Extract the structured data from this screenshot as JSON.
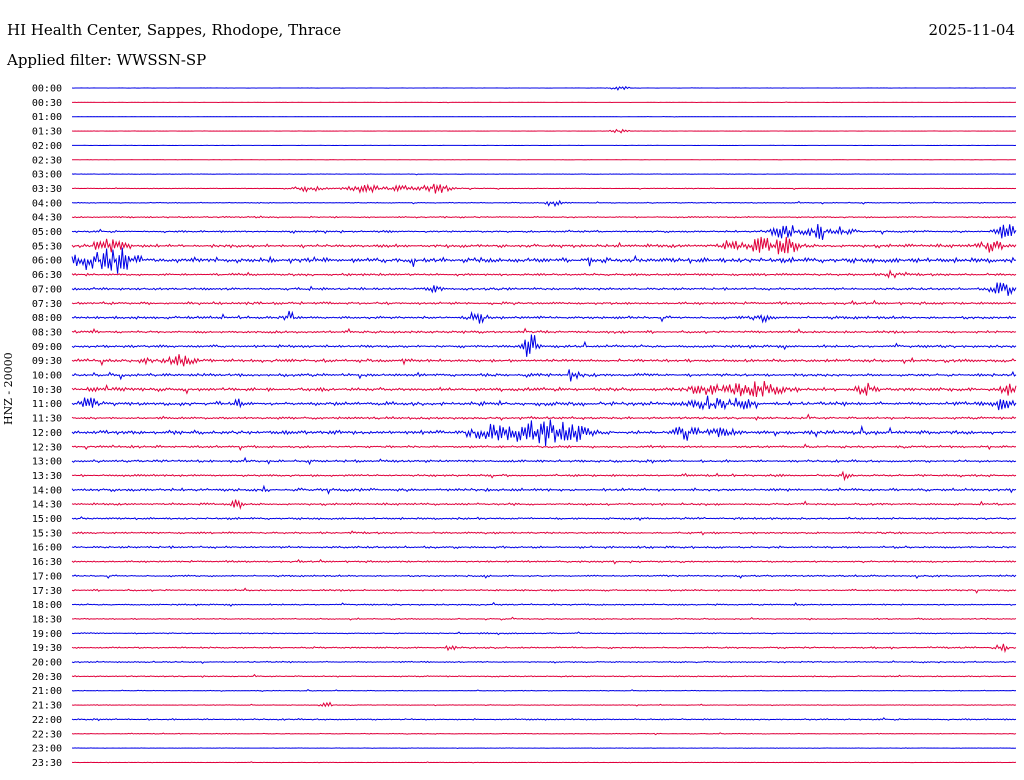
{
  "header": {
    "station": "HI Health Center, Sappes, Rhodope, Thrace",
    "date": "2025-11-04",
    "filter_label": "Applied filter:",
    "filter": "WWSSN-SP"
  },
  "channel_label": "HNZ - 20000",
  "colors": {
    "trace_a": "#0000e6",
    "trace_b": "#e0003c",
    "text": "#000000"
  },
  "chart_data": {
    "type": "helicorder",
    "trace_colors": [
      "#0000e6",
      "#e0003c"
    ],
    "rows": [
      "00:00",
      "00:30",
      "01:00",
      "01:30",
      "02:00",
      "02:30",
      "03:00",
      "03:30",
      "04:00",
      "04:30",
      "05:00",
      "05:30",
      "06:00",
      "06:30",
      "07:00",
      "07:30",
      "08:00",
      "08:30",
      "09:00",
      "09:30",
      "10:00",
      "10:30",
      "11:00",
      "11:30",
      "12:00",
      "12:30",
      "13:00",
      "13:30",
      "14:00",
      "14:30",
      "15:00",
      "15:30",
      "16:00",
      "16:30",
      "17:00",
      "17:30",
      "18:00",
      "18:30",
      "19:00",
      "19:30",
      "20:00",
      "20:30",
      "21:00",
      "21:30",
      "22:00",
      "22:30",
      "23:00",
      "23:30"
    ],
    "noise": [
      0.1,
      0.1,
      0.1,
      0.1,
      0.1,
      0.1,
      0.2,
      0.3,
      0.4,
      0.6,
      0.8,
      1.4,
      2.2,
      1.0,
      1.0,
      1.1,
      1.2,
      1.0,
      1.1,
      1.3,
      1.2,
      1.5,
      1.6,
      1.0,
      1.6,
      1.0,
      1.0,
      0.9,
      1.2,
      0.9,
      0.9,
      0.8,
      0.9,
      0.8,
      0.7,
      0.7,
      0.6,
      0.5,
      0.5,
      0.7,
      0.6,
      0.5,
      0.3,
      0.3,
      0.6,
      0.3,
      0.2,
      0.2
    ],
    "events": [
      {
        "row": "00:00",
        "t": 0.58,
        "amp": 2,
        "dur": 0.01
      },
      {
        "row": "01:30",
        "t": 0.58,
        "amp": 2,
        "dur": 0.01
      },
      {
        "row": "03:30",
        "t": 0.25,
        "amp": 3,
        "dur": 0.015
      },
      {
        "row": "03:30",
        "t": 0.31,
        "amp": 4,
        "dur": 0.02
      },
      {
        "row": "03:30",
        "t": 0.35,
        "amp": 4,
        "dur": 0.01
      },
      {
        "row": "03:30",
        "t": 0.385,
        "amp": 5,
        "dur": 0.015
      },
      {
        "row": "04:00",
        "t": 0.51,
        "amp": 3,
        "dur": 0.01
      },
      {
        "row": "05:00",
        "t": 0.755,
        "amp": 7,
        "dur": 0.015
      },
      {
        "row": "05:00",
        "t": 0.8,
        "amp": 8,
        "dur": 0.02
      },
      {
        "row": "05:00",
        "t": 0.99,
        "amp": 8,
        "dur": 0.012
      },
      {
        "row": "05:30",
        "t": 0.04,
        "amp": 7,
        "dur": 0.015
      },
      {
        "row": "05:30",
        "t": 0.7,
        "amp": 5,
        "dur": 0.012
      },
      {
        "row": "05:30",
        "t": 0.73,
        "amp": 7,
        "dur": 0.012
      },
      {
        "row": "05:30",
        "t": 0.755,
        "amp": 8,
        "dur": 0.015
      },
      {
        "row": "05:30",
        "t": 0.975,
        "amp": 6,
        "dur": 0.012
      },
      {
        "row": "06:00",
        "t": 0.02,
        "amp": 7,
        "dur": 0.025
      },
      {
        "row": "06:00",
        "t": 0.05,
        "amp": 9,
        "dur": 0.02
      },
      {
        "row": "06:30",
        "t": 0.87,
        "amp": 6,
        "dur": 0.006
      },
      {
        "row": "07:00",
        "t": 0.385,
        "amp": 6,
        "dur": 0.006
      },
      {
        "row": "07:00",
        "t": 0.985,
        "amp": 9,
        "dur": 0.01
      },
      {
        "row": "08:00",
        "t": 0.23,
        "amp": 5,
        "dur": 0.006
      },
      {
        "row": "08:00",
        "t": 0.43,
        "amp": 5,
        "dur": 0.01
      },
      {
        "row": "08:00",
        "t": 0.73,
        "amp": 4,
        "dur": 0.01
      },
      {
        "row": "09:00",
        "t": 0.485,
        "amp": 24,
        "dur": 0.006
      },
      {
        "row": "09:30",
        "t": 0.08,
        "amp": 5,
        "dur": 0.005
      },
      {
        "row": "09:30",
        "t": 0.115,
        "amp": 6,
        "dur": 0.012
      },
      {
        "row": "10:00",
        "t": 0.53,
        "amp": 6,
        "dur": 0.008
      },
      {
        "row": "10:30",
        "t": 0.67,
        "amp": 5,
        "dur": 0.02
      },
      {
        "row": "10:30",
        "t": 0.725,
        "amp": 8,
        "dur": 0.03
      },
      {
        "row": "10:30",
        "t": 0.84,
        "amp": 5,
        "dur": 0.01
      },
      {
        "row": "10:30",
        "t": 0.99,
        "amp": 6,
        "dur": 0.01
      },
      {
        "row": "11:00",
        "t": 0.018,
        "amp": 8,
        "dur": 0.006
      },
      {
        "row": "11:00",
        "t": 0.175,
        "amp": 5,
        "dur": 0.004
      },
      {
        "row": "11:00",
        "t": 0.675,
        "amp": 6,
        "dur": 0.02
      },
      {
        "row": "11:00",
        "t": 0.71,
        "amp": 5,
        "dur": 0.012
      },
      {
        "row": "11:00",
        "t": 0.985,
        "amp": 6,
        "dur": 0.01
      },
      {
        "row": "12:00",
        "t": 0.44,
        "amp": 8,
        "dur": 0.02
      },
      {
        "row": "12:00",
        "t": 0.475,
        "amp": 6,
        "dur": 0.02
      },
      {
        "row": "12:00",
        "t": 0.5,
        "amp": 10,
        "dur": 0.02
      },
      {
        "row": "12:00",
        "t": 0.53,
        "amp": 8,
        "dur": 0.02
      },
      {
        "row": "12:00",
        "t": 0.65,
        "amp": 8,
        "dur": 0.012
      },
      {
        "row": "12:00",
        "t": 0.69,
        "amp": 4,
        "dur": 0.015
      },
      {
        "row": "13:30",
        "t": 0.82,
        "amp": 5,
        "dur": 0.005
      },
      {
        "row": "14:30",
        "t": 0.175,
        "amp": 5,
        "dur": 0.005
      },
      {
        "row": "19:30",
        "t": 0.4,
        "amp": 4,
        "dur": 0.005
      },
      {
        "row": "19:30",
        "t": 0.985,
        "amp": 4,
        "dur": 0.006
      },
      {
        "row": "21:30",
        "t": 0.27,
        "amp": 4,
        "dur": 0.006
      }
    ]
  }
}
